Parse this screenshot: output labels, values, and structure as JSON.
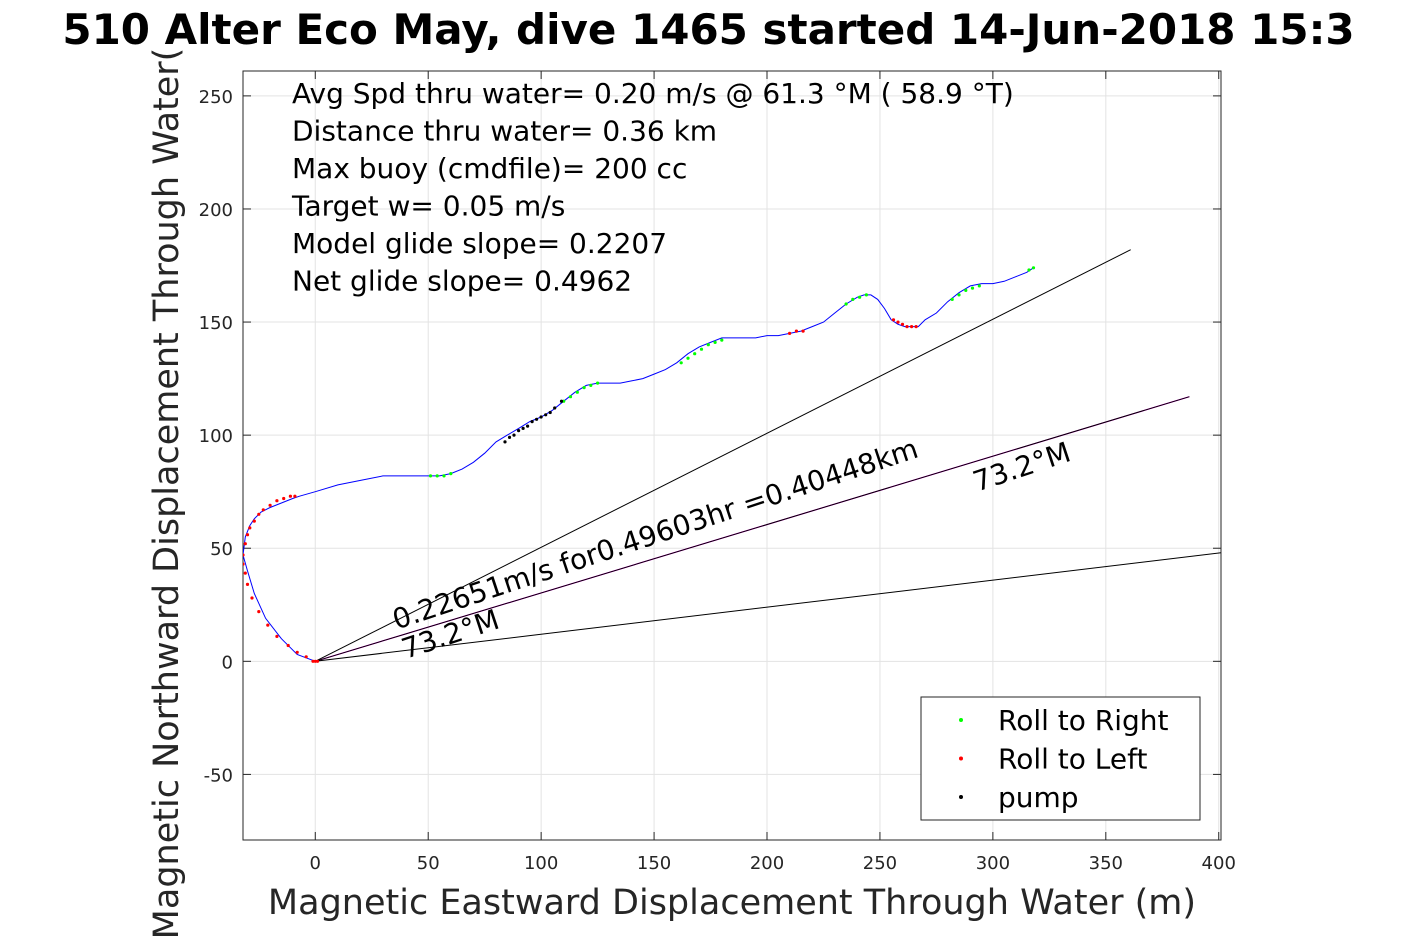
{
  "chart_data": {
    "type": "line",
    "title": "510 Alter Eco May, dive 1465 started 14-Jun-2018 15:3",
    "xlabel": "Magnetic Eastward Displacement Through Water (m)",
    "ylabel": "Magnetic Northward Displacement Through Water(",
    "xlim": [
      -32,
      401
    ],
    "ylim": [
      -79,
      261
    ],
    "x_ticks": [
      0,
      50,
      100,
      150,
      200,
      250,
      300,
      350,
      400
    ],
    "x_tick_labels": [
      "0",
      "50",
      "100",
      "150",
      "200",
      "250",
      "300",
      "350",
      "400"
    ],
    "y_ticks": [
      -50,
      0,
      50,
      100,
      150,
      200,
      250
    ],
    "y_tick_labels": [
      "-50",
      "0",
      "50",
      "100",
      "150",
      "200",
      "250"
    ],
    "grid": true,
    "legend_position": "bottom-right",
    "info_lines": [
      "Avg Spd thru water=  0.20 m/s @  61.3 °M ( 58.9 °T)",
      "Distance thru water=  0.36 km",
      "Max buoy (cmdfile)= 200 cc",
      "Target w= 0.05 m/s",
      "Model glide slope= 0.2207",
      "Net glide slope= 0.4962"
    ],
    "annotations": [
      {
        "text": "0.22651m/s for0.49603hr =0.40448km",
        "x": 36,
        "y": 14,
        "rotation_deg": -18.3
      },
      {
        "text": "73.2°M",
        "x": 40,
        "y": 1,
        "rotation_deg": -18.3
      },
      {
        "text": "73.2°M",
        "x": 293,
        "y": 75,
        "rotation_deg": -18.3
      }
    ],
    "series": [
      {
        "kind": "track",
        "color": "#0000ff",
        "x": [
          0,
          -8,
          -15,
          -22,
          -27,
          -30,
          -32,
          -31,
          -29,
          -27,
          -24,
          -20,
          -15,
          -10,
          -7,
          0,
          10,
          20,
          30,
          40,
          50,
          55,
          60,
          65,
          70,
          75,
          80,
          85,
          90,
          95,
          100,
          105,
          110,
          115,
          120,
          125,
          130,
          135,
          140,
          145,
          150,
          155,
          160,
          165,
          170,
          175,
          180,
          185,
          190,
          195,
          200,
          205,
          210,
          215,
          220,
          225,
          230,
          235,
          240,
          243,
          246,
          249,
          252,
          255,
          258,
          261,
          264,
          267,
          270,
          275,
          280,
          285,
          290,
          295,
          300,
          305,
          310,
          315,
          318
        ],
        "y": [
          0,
          3,
          10,
          19,
          30,
          40,
          47,
          55,
          60,
          63,
          66,
          68,
          70,
          72,
          73,
          75,
          78,
          80,
          82,
          82,
          82,
          82,
          83,
          85,
          88,
          92,
          97,
          100,
          103,
          106,
          108,
          111,
          115,
          119,
          122,
          123,
          123,
          123,
          124,
          125,
          127,
          129,
          132,
          136,
          139,
          141,
          143,
          143,
          143,
          143,
          144,
          144,
          145,
          146,
          148,
          150,
          154,
          158,
          161,
          162,
          162,
          160,
          156,
          151,
          149,
          148,
          148,
          148,
          151,
          154,
          159,
          163,
          166,
          167,
          167,
          168,
          170,
          172,
          174
        ]
      },
      {
        "kind": "heading",
        "color": "#ff00ff",
        "x": [
          0,
          387
        ],
        "y": [
          0,
          117
        ]
      },
      {
        "kind": "reference",
        "color": "#000000",
        "x": [
          0,
          361
        ],
        "y": [
          0,
          182
        ]
      },
      {
        "kind": "reference",
        "color": "#000000",
        "x": [
          0,
          387
        ],
        "y": [
          0,
          117
        ]
      },
      {
        "kind": "reference",
        "color": "#000000",
        "x": [
          0,
          401
        ],
        "y": [
          0,
          48
        ]
      },
      {
        "name": "Roll to Right",
        "kind": "marker",
        "color": "#00ff00",
        "x": [
          51,
          54,
          57,
          60,
          110,
          113,
          116,
          119,
          122,
          125,
          162,
          165,
          168,
          171,
          174,
          177,
          180,
          235,
          238,
          241,
          244,
          282,
          285,
          288,
          291,
          294,
          316,
          318
        ],
        "y": [
          82,
          82,
          82,
          83,
          115,
          117,
          119,
          121,
          122,
          123,
          132,
          134,
          136,
          138,
          140,
          141,
          142,
          158,
          160,
          161,
          162,
          160,
          162,
          164,
          165,
          166,
          173,
          174
        ]
      },
      {
        "name": "Roll to Left",
        "kind": "marker",
        "color": "#ff0000",
        "x": [
          -1,
          0,
          1,
          -4,
          -8,
          -12,
          -17,
          -21,
          -25,
          -28,
          -30,
          -31,
          -32,
          -32,
          -31,
          -30,
          -29,
          -27,
          -25,
          -23,
          -20,
          -17,
          -14,
          -11,
          -9,
          210,
          213,
          216,
          256,
          258,
          260,
          262,
          264,
          266
        ],
        "y": [
          0,
          0,
          0,
          2,
          4,
          7,
          11,
          16,
          22,
          28,
          34,
          39,
          43,
          47,
          52,
          56,
          59,
          62,
          65,
          67,
          69,
          71,
          72,
          73,
          73,
          145,
          146,
          146,
          151,
          150,
          149,
          148,
          148,
          148
        ]
      },
      {
        "name": "pump",
        "kind": "marker",
        "color": "#000000",
        "x": [
          84,
          86,
          88,
          90,
          92,
          94,
          96,
          98,
          100,
          102,
          104,
          106,
          109
        ],
        "y": [
          97,
          99,
          100,
          102,
          103,
          104,
          106,
          107,
          108,
          109,
          110,
          112,
          115
        ]
      }
    ],
    "legend": [
      {
        "label": "Roll to Right",
        "color": "#00ff00"
      },
      {
        "label": "Roll to Left",
        "color": "#ff0000"
      },
      {
        "label": "pump",
        "color": "#000000"
      }
    ]
  }
}
